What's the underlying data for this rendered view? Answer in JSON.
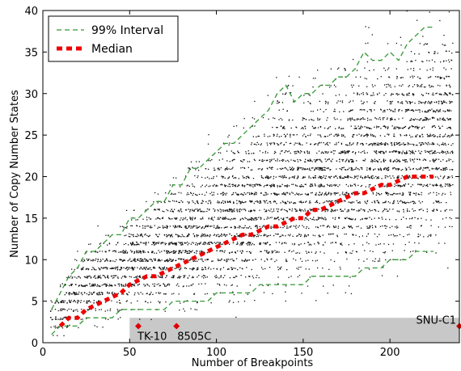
{
  "chart_data": {
    "type": "scatter",
    "title": "",
    "xlabel": "Number of Breakpoints",
    "ylabel": "Number of Copy Number States",
    "xlim": [
      0,
      240
    ],
    "ylim": [
      0,
      40
    ],
    "xticks": [
      "0",
      "50",
      "100",
      "150",
      "200"
    ],
    "yticks": [
      "0",
      "5",
      "10",
      "15",
      "20",
      "25",
      "30",
      "35",
      "40"
    ],
    "xtick_values": [
      0,
      50,
      100,
      150,
      200
    ],
    "ytick_values": [
      0,
      5,
      10,
      15,
      20,
      25,
      30,
      35,
      40
    ],
    "grid": false,
    "legend": {
      "placement": "top-left",
      "entries": [
        "99% Interval",
        "Median"
      ]
    },
    "colors": {
      "interval": "#339933",
      "median": "#ee0000",
      "points": "#111111",
      "band": "#c8c8c8",
      "marker": "#dd0000"
    },
    "series": [
      {
        "name": "99% Interval",
        "style": "dashed",
        "upper": {
          "x": [
            5,
            10,
            15,
            20,
            25,
            30,
            35,
            40,
            45,
            50,
            55,
            60,
            65,
            70,
            75,
            80,
            85,
            90,
            95,
            100,
            105,
            110,
            115,
            120,
            125,
            130,
            135,
            140,
            145,
            150,
            155,
            160,
            165,
            170,
            175,
            180,
            185,
            190,
            195,
            200,
            205,
            210,
            215,
            220,
            225
          ],
          "y": [
            4,
            6,
            8,
            9,
            11,
            11,
            12,
            13,
            13,
            15,
            15,
            16,
            17,
            17,
            19,
            19,
            21,
            21,
            22,
            23,
            24,
            24,
            25,
            26,
            27,
            28,
            30,
            31,
            29,
            30,
            30,
            31,
            31,
            32,
            32,
            33,
            35,
            34,
            34,
            35,
            34,
            36,
            37,
            38,
            38
          ]
        },
        "lower": {
          "x": [
            5,
            10,
            15,
            20,
            25,
            30,
            35,
            40,
            45,
            50,
            55,
            60,
            65,
            70,
            75,
            80,
            85,
            90,
            95,
            100,
            105,
            110,
            115,
            120,
            125,
            130,
            135,
            140,
            145,
            150,
            155,
            160,
            165,
            170,
            175,
            180,
            185,
            190,
            195,
            200,
            205,
            210,
            215,
            220,
            225
          ],
          "y": [
            1,
            2,
            2,
            2,
            3,
            3,
            3,
            3,
            4,
            4,
            4,
            4,
            4,
            4,
            5,
            5,
            5,
            5,
            5,
            6,
            6,
            6,
            6,
            6,
            7,
            7,
            7,
            7,
            7,
            7,
            8,
            8,
            8,
            8,
            8,
            8,
            9,
            9,
            9,
            10,
            10,
            10,
            11,
            11,
            11
          ]
        }
      },
      {
        "name": "Median",
        "style": "thick-dashed",
        "x": [
          10,
          15,
          20,
          25,
          30,
          35,
          40,
          45,
          50,
          55,
          60,
          65,
          70,
          75,
          80,
          85,
          90,
          95,
          100,
          105,
          110,
          115,
          120,
          125,
          130,
          135,
          140,
          145,
          150,
          155,
          160,
          165,
          170,
          175,
          180,
          185,
          190,
          195,
          200,
          205,
          210,
          215,
          220,
          225
        ],
        "y": [
          2,
          3,
          3,
          4,
          4.5,
          5,
          5.5,
          6,
          7,
          7.5,
          8,
          8,
          8.5,
          9,
          9.5,
          10,
          10.5,
          11,
          11.5,
          12,
          12.5,
          13,
          13,
          13.5,
          14,
          14,
          14.5,
          15,
          15,
          16,
          16,
          16.5,
          17,
          17.5,
          18,
          18,
          18.5,
          19,
          19,
          19.5,
          20,
          20,
          20,
          20
        ]
      }
    ],
    "highlight_band": {
      "x": [
        50,
        240
      ],
      "y": [
        0,
        3
      ]
    },
    "annotations": [
      {
        "text": "TK-10",
        "x": 55,
        "y": 2
      },
      {
        "text": "8505C",
        "x": 77,
        "y": 2
      },
      {
        "text": "SNU-C1",
        "x": 240,
        "y": 2
      }
    ]
  }
}
